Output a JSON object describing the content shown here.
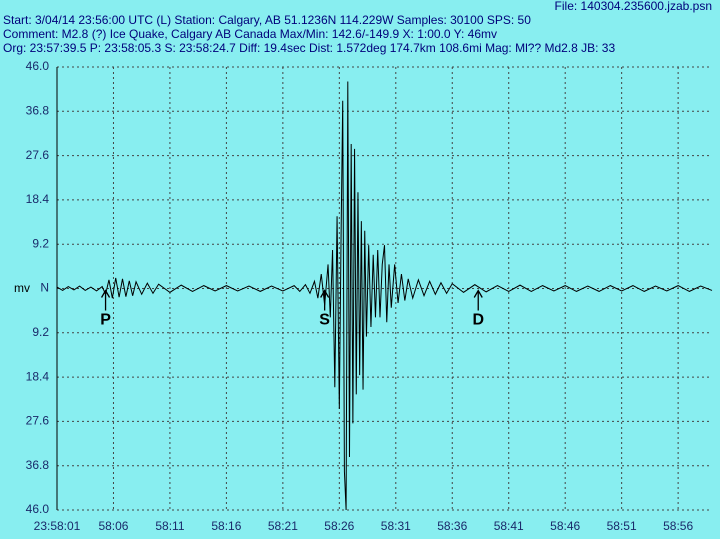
{
  "chart_data": {
    "type": "line",
    "header": {
      "file": "File: 140304.235600.jzab.psn",
      "start": "Start: 3/04/14 23:56:00 UTC (L) Station: Calgary, AB 51.1236N 114.229W Samples: 30100  SPS: 50",
      "comment": "Comment: M2.8 (?) Ice Quake, Calgary AB Canada  Max/Min: 142.6/-149.9 X: 1:00.0 Y: 46mv",
      "origin": "Org: 23:57:39.5 P: 23:58:05.3 S: 23:58:24.7 Diff: 19.4sec Dist: 1.572deg 174.7km 108.6mi  Mag: Ml?? Md2.8 JB: 33"
    },
    "y_label": "mv",
    "color": "#000000",
    "grid": true,
    "x": [
      1,
      1.5,
      2,
      2.5,
      3,
      3.5,
      4,
      4.5,
      5,
      5.3,
      5.6,
      5.9,
      6.2,
      6.5,
      6.8,
      7.1,
      7.4,
      7.7,
      8,
      8.5,
      9,
      9.5,
      10,
      11,
      12,
      13,
      14,
      15,
      16,
      17,
      18,
      19,
      20,
      21,
      22,
      22.5,
      23,
      23.4,
      23.8,
      24.1,
      24.4,
      24.7,
      25,
      25.2,
      25.4,
      25.6,
      25.8,
      26,
      26.15,
      26.3,
      26.45,
      26.6,
      26.75,
      26.9,
      27.05,
      27.2,
      27.35,
      27.5,
      27.65,
      27.8,
      27.95,
      28.1,
      28.25,
      28.4,
      28.6,
      28.8,
      29,
      29.2,
      29.4,
      29.6,
      29.8,
      30,
      30.2,
      30.4,
      30.6,
      30.9,
      31.2,
      31.5,
      31.8,
      32.1,
      32.5,
      33,
      33.5,
      34,
      34.5,
      35,
      35.5,
      36,
      37,
      38,
      39,
      40,
      41,
      42,
      43,
      44,
      45,
      46,
      47,
      48,
      49,
      50,
      51,
      52,
      53,
      54,
      55,
      56,
      57,
      58,
      59
    ],
    "values": [
      0.3,
      -0.4,
      0.4,
      -0.3,
      0.5,
      -0.4,
      0.3,
      -0.5,
      0.4,
      -1.2,
      1.8,
      -2,
      2.2,
      -1.8,
      2,
      -1.7,
      1.6,
      -1.5,
      1.4,
      -1.2,
      1.1,
      -1,
      0.9,
      -0.8,
      0.7,
      -0.6,
      0.6,
      -0.5,
      0.6,
      -0.5,
      0.5,
      -0.6,
      0.5,
      -0.5,
      0.6,
      -0.6,
      0.8,
      -1,
      1.5,
      -2,
      3,
      -3.5,
      5,
      -6,
      8,
      -20.5,
      15,
      -25,
      10,
      39,
      -38,
      -46,
      43,
      -35,
      30,
      -28,
      29,
      -22,
      20,
      -18,
      14,
      -21,
      12,
      -10,
      9,
      -8,
      7,
      -6,
      8,
      -6,
      5,
      9,
      -7,
      5,
      -4,
      5,
      -3,
      3,
      -2.5,
      2,
      -2,
      1.8,
      -1.5,
      1.5,
      -1.2,
      1.2,
      -1,
      1,
      -0.8,
      0.8,
      -0.7,
      0.6,
      -0.6,
      0.7,
      -0.6,
      0.6,
      -0.5,
      0.6,
      -0.6,
      0.5,
      -0.6,
      0.6,
      -0.5,
      0.6,
      -0.6,
      0.5,
      -0.5,
      0.6,
      -0.6,
      0.5,
      -0.4
    ],
    "xlim": [
      1,
      59
    ],
    "xticks": [
      {
        "value": 1,
        "label": "23:58:01"
      },
      {
        "value": 6,
        "label": "58:06"
      },
      {
        "value": 11,
        "label": "58:11"
      },
      {
        "value": 16,
        "label": "58:16"
      },
      {
        "value": 21,
        "label": "58:21"
      },
      {
        "value": 26,
        "label": "58:26"
      },
      {
        "value": 31,
        "label": "58:31"
      },
      {
        "value": 36,
        "label": "58:36"
      },
      {
        "value": 41,
        "label": "58:41"
      },
      {
        "value": 46,
        "label": "58:46"
      },
      {
        "value": 51,
        "label": "58:51"
      },
      {
        "value": 56,
        "label": "58:56"
      }
    ],
    "ylim": [
      -46,
      46
    ],
    "yticks": [
      {
        "value": 46,
        "label": "46.0"
      },
      {
        "value": 36.8,
        "label": "36.8"
      },
      {
        "value": 27.6,
        "label": "27.6"
      },
      {
        "value": 18.4,
        "label": "18.4"
      },
      {
        "value": 9.2,
        "label": "9.2"
      },
      {
        "value": 0,
        "label": "N"
      },
      {
        "value": -9.2,
        "label": "9.2"
      },
      {
        "value": -18.4,
        "label": "18.4"
      },
      {
        "value": -27.6,
        "label": "27.6"
      },
      {
        "value": -36.8,
        "label": "36.8"
      },
      {
        "value": -46,
        "label": "46.0"
      }
    ],
    "annotations": [
      {
        "text": "P",
        "x": 5.3
      },
      {
        "text": "S",
        "x": 24.7
      },
      {
        "text": "D",
        "x": 38.3
      }
    ]
  }
}
